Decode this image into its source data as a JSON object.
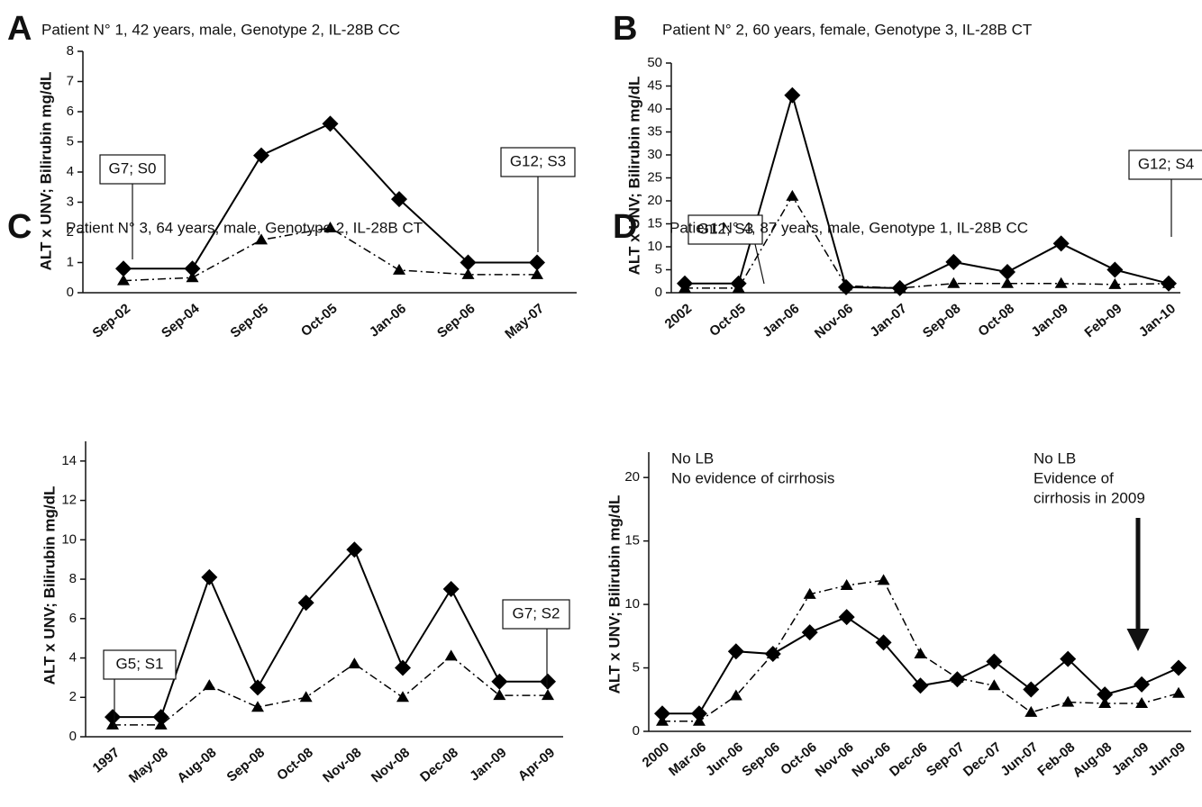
{
  "chart_data": [
    {
      "type": "line",
      "panel": "A",
      "title": "Patient N° 1, 42 years, male, Genotype 2, IL-28B CC",
      "y_label": "ALT x UNV; Bilirubin mg/dL",
      "categories": [
        "Sep-02",
        "Sep-04",
        "Sep-05",
        "Oct-05",
        "Jan-06",
        "Sep-06",
        "May-07"
      ],
      "series": [
        {
          "marker": "diamond",
          "line": "solid",
          "color": "#000000",
          "values": [
            0.8,
            0.8,
            4.55,
            5.6,
            3.1,
            1.0,
            1.0
          ]
        },
        {
          "marker": "triangle",
          "line": "dashdot",
          "color": "#000000",
          "values": [
            0.4,
            0.5,
            1.75,
            2.15,
            0.75,
            0.6,
            0.6
          ]
        }
      ],
      "ylim": [
        0,
        8
      ],
      "yticks": [
        0,
        1,
        2,
        3,
        4,
        5,
        6,
        7,
        8
      ],
      "annotations": [
        {
          "lines": [
            "G7; S0"
          ],
          "boxed": true
        },
        {
          "lines": [
            "G12; S3"
          ],
          "boxed": true
        }
      ]
    },
    {
      "type": "line",
      "panel": "B",
      "title": "Patient N° 2, 60 years, female, Genotype 3, IL-28B CT",
      "y_label": "ALT x UNV; Bilirubin mg/dL",
      "categories": [
        "2002",
        "Oct-05",
        "Jan-06",
        "Nov-06",
        "Jan-07",
        "Sep-08",
        "Oct-08",
        "Jan-09",
        "Feb-09",
        "Jan-10"
      ],
      "series": [
        {
          "marker": "diamond",
          "line": "solid",
          "color": "#000000",
          "values": [
            2,
            2,
            43,
            1.2,
            1,
            6.7,
            4.5,
            10.7,
            5,
            2
          ]
        },
        {
          "marker": "triangle",
          "line": "dashdot",
          "color": "#000000",
          "values": [
            1,
            1,
            21,
            1.5,
            1,
            2,
            2,
            2,
            1.8,
            2
          ]
        }
      ],
      "ylim": [
        0,
        50
      ],
      "yticks": [
        0,
        5,
        10,
        15,
        20,
        25,
        30,
        35,
        40,
        45,
        50
      ],
      "annotations": [
        {
          "lines": [
            "G12; S3"
          ],
          "boxed": true
        },
        {
          "lines": [
            "G12; S4"
          ],
          "boxed": true
        }
      ]
    },
    {
      "type": "line",
      "panel": "C",
      "title": "Patient N° 3, 64 years, male, Genotype 2, IL-28B CT",
      "y_label": "ALT x UNV; Bilirubin mg/dL",
      "categories": [
        "1997",
        "May-08",
        "Aug-08",
        "Sep-08",
        "Oct-08",
        "Nov-08",
        "Nov-08",
        "Dec-08",
        "Jan-09",
        "Apr-09"
      ],
      "series": [
        {
          "marker": "diamond",
          "line": "solid",
          "color": "#000000",
          "values": [
            1,
            1,
            8.1,
            2.5,
            6.8,
            9.5,
            3.5,
            7.5,
            2.8,
            2.8
          ]
        },
        {
          "marker": "triangle",
          "line": "dashdot",
          "color": "#000000",
          "values": [
            0.6,
            0.6,
            2.6,
            1.5,
            2.0,
            3.7,
            2.0,
            4.1,
            2.1,
            2.1
          ]
        }
      ],
      "ylim": [
        0,
        15
      ],
      "yticks": [
        0,
        2,
        4,
        6,
        8,
        10,
        12,
        14
      ],
      "annotations": [
        {
          "lines": [
            "G5; S1"
          ],
          "boxed": true
        },
        {
          "lines": [
            "G7; S2"
          ],
          "boxed": true
        }
      ]
    },
    {
      "type": "line",
      "panel": "D",
      "title": "Patient N° 4, 87 years, male, Genotype 1, IL-28B CC",
      "y_label": "ALT x UNV; Bilirubin mg/dL",
      "categories": [
        "2000",
        "Mar-06",
        "Jun-06",
        "Sep-06",
        "Oct-06",
        "Nov-06",
        "Nov-06",
        "Dec-06",
        "Sep-07",
        "Dec-07",
        "Jun-07",
        "Feb-08",
        "Aug-08",
        "Jan-09",
        "Jun-09"
      ],
      "series": [
        {
          "marker": "diamond",
          "line": "solid",
          "color": "#000000",
          "values": [
            1.4,
            1.4,
            6.3,
            6.1,
            7.8,
            9.0,
            7.0,
            3.6,
            4.1,
            5.5,
            3.3,
            5.7,
            2.9,
            3.7,
            5.0
          ]
        },
        {
          "marker": "triangle",
          "line": "dashdot",
          "color": "#000000",
          "values": [
            0.8,
            0.8,
            2.8,
            6.1,
            10.8,
            11.5,
            11.9,
            6.1,
            4.2,
            3.6,
            1.5,
            2.3,
            2.2,
            2.2,
            3.0
          ]
        }
      ],
      "ylim": [
        0,
        22
      ],
      "yticks": [
        0,
        5,
        10,
        15,
        20
      ],
      "annotations": [
        {
          "lines": [
            "No LB",
            "No evidence of cirrhosis"
          ],
          "boxed": false
        },
        {
          "lines": [
            "No LB",
            "Evidence of",
            "cirrhosis in 2009"
          ],
          "boxed": false
        }
      ]
    }
  ]
}
